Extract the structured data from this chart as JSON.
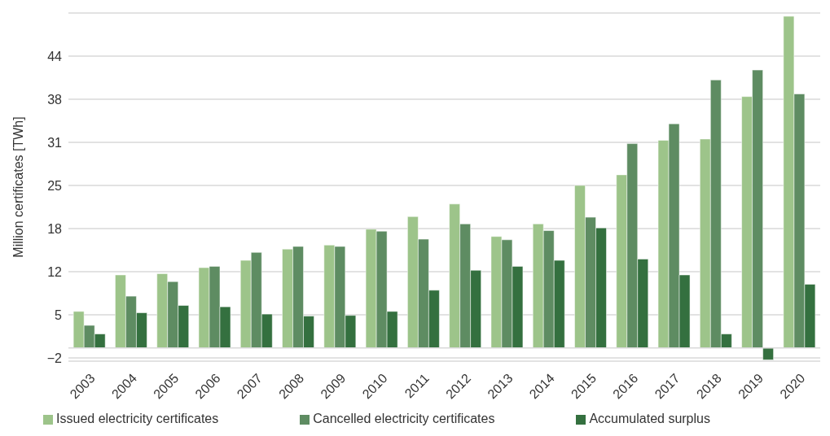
{
  "chart_data": {
    "type": "bar",
    "ylabel": "Million certificates  [TWh]",
    "categories": [
      "2003",
      "2004",
      "2005",
      "2006",
      "2007",
      "2008",
      "2009",
      "2010",
      "2011",
      "2012",
      "2013",
      "2014",
      "2015",
      "2016",
      "2017",
      "2018",
      "2019",
      "2020"
    ],
    "series": [
      {
        "name": "Issued electricity certificates",
        "color": "#9dc48a",
        "values": [
          5.5,
          11.0,
          11.2,
          12.1,
          13.2,
          14.9,
          15.5,
          17.9,
          19.8,
          21.7,
          16.8,
          18.7,
          24.5,
          26.1,
          31.3,
          31.5,
          37.9,
          50.0
        ]
      },
      {
        "name": "Cancelled electricity certificates",
        "color": "#5e8c62",
        "values": [
          3.4,
          7.8,
          10.0,
          12.3,
          14.4,
          15.3,
          15.3,
          17.6,
          16.4,
          18.7,
          16.3,
          17.7,
          19.7,
          30.8,
          33.8,
          40.4,
          41.9,
          38.3
        ]
      },
      {
        "name": "Accumulated surplus",
        "color": "#34703f",
        "values": [
          2.1,
          5.3,
          6.4,
          6.2,
          5.1,
          4.8,
          4.9,
          5.5,
          8.7,
          11.7,
          12.3,
          13.2,
          18.1,
          13.4,
          11.0,
          2.1,
          -1.8,
          9.6
        ]
      }
    ],
    "ylim": [
      -2,
      50.5
    ],
    "yticks": [
      {
        "value": -1.5,
        "label": "−2"
      },
      5,
      {
        "value": 11.5,
        "label": "12"
      },
      18,
      {
        "value": 24.5,
        "label": "25"
      },
      31,
      {
        "value": 37.5,
        "label": "38"
      },
      44
    ],
    "ref_lines": [
      {
        "axis": "y",
        "value": 0,
        "color": "#d9d9d9"
      }
    ],
    "grid": "y",
    "legend": "bottom"
  }
}
